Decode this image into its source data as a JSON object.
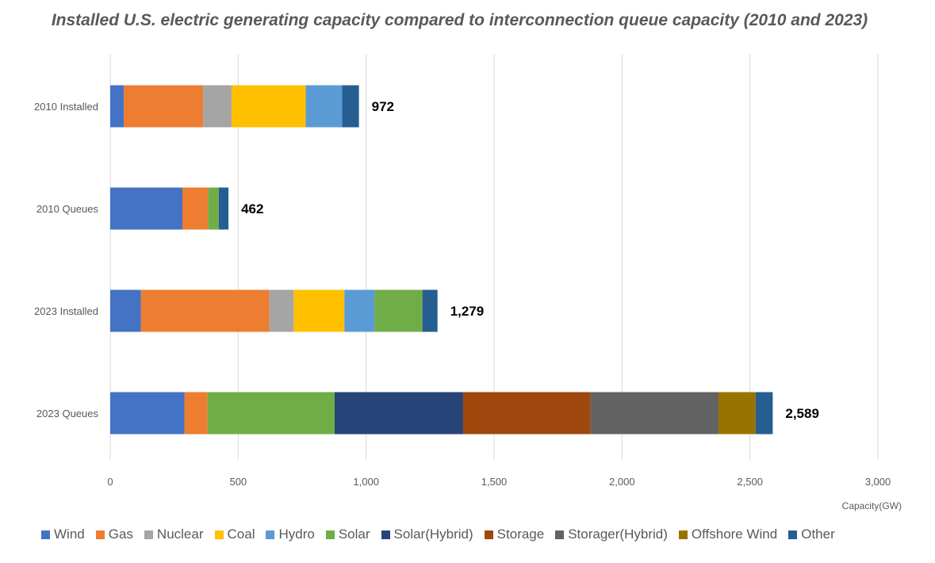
{
  "chart_data": {
    "type": "bar",
    "orientation": "horizontal",
    "stacked": true,
    "title": "Installed U.S. electric generating capacity compared to interconnection queue capacity (2010 and 2023)",
    "xlabel": "Capacity(GW)",
    "ylabel": "",
    "xlim": [
      0,
      3000
    ],
    "xticks": [
      0,
      500,
      1000,
      1500,
      2000,
      2500,
      3000
    ],
    "xtick_labels": [
      "0",
      "500",
      "1,000",
      "1,500",
      "2,000",
      "2,500",
      "3,000"
    ],
    "grid": "vertical",
    "legend_position": "bottom",
    "categories": [
      "2010 Installed",
      "2010 Queues",
      "2023 Installed",
      "2023 Queues"
    ],
    "totals": [
      972,
      462,
      1279,
      2589
    ],
    "total_labels": [
      "972",
      "462",
      "1,279",
      "2,589"
    ],
    "series": [
      {
        "name": "Wind",
        "color": "#4472C4",
        "values": [
          53,
          282,
          120,
          290
        ]
      },
      {
        "name": "Gas",
        "color": "#ED7D31",
        "values": [
          310,
          100,
          502,
          90
        ]
      },
      {
        "name": "Nuclear",
        "color": "#A5A5A5",
        "values": [
          111,
          0,
          95,
          0
        ]
      },
      {
        "name": "Coal",
        "color": "#FFC000",
        "values": [
          290,
          0,
          198,
          0
        ]
      },
      {
        "name": "Hydro",
        "color": "#5B9BD5",
        "values": [
          142,
          0,
          118,
          0
        ]
      },
      {
        "name": "Solar",
        "color": "#70AD47",
        "values": [
          0,
          42,
          187,
          497
        ]
      },
      {
        "name": "Solar(Hybrid)",
        "color": "#264478",
        "values": [
          0,
          0,
          0,
          502
        ]
      },
      {
        "name": "Storage",
        "color": "#9E480E",
        "values": [
          0,
          0,
          0,
          498
        ]
      },
      {
        "name": "Storager(Hybrid)",
        "color": "#636363",
        "values": [
          0,
          0,
          0,
          500
        ]
      },
      {
        "name": "Offshore Wind",
        "color": "#997300",
        "values": [
          0,
          0,
          0,
          145
        ]
      },
      {
        "name": "Other",
        "color": "#255E91",
        "values": [
          66,
          38,
          59,
          67
        ]
      }
    ]
  }
}
